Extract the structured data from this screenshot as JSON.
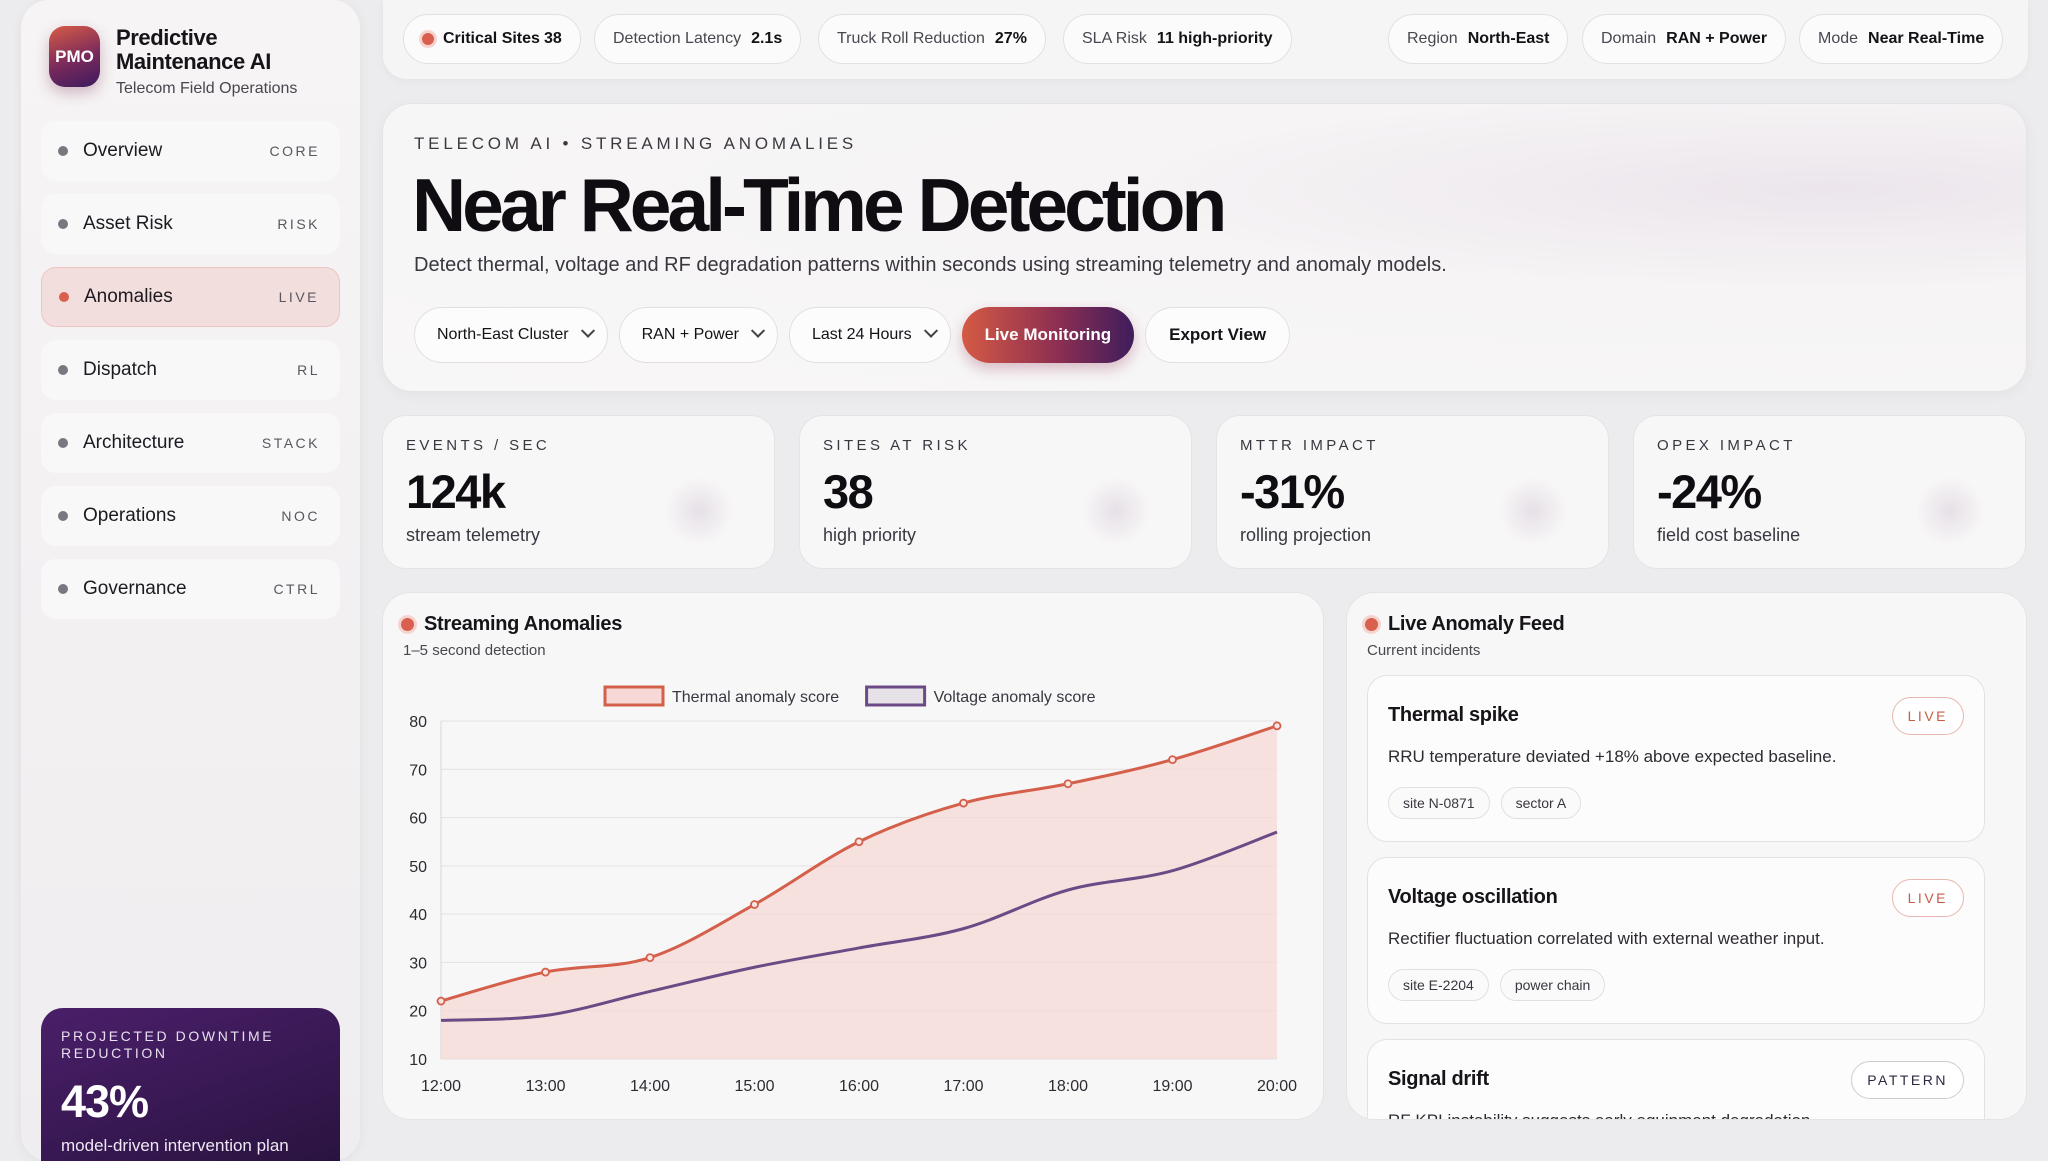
{
  "brand": {
    "logo": "PMO",
    "title_line1": "Predictive",
    "title_line2": "Maintenance AI",
    "subtitle": "Telecom Field Operations"
  },
  "nav": [
    {
      "label": "Overview",
      "tag": "CORE"
    },
    {
      "label": "Asset Risk",
      "tag": "RISK"
    },
    {
      "label": "Anomalies",
      "tag": "LIVE",
      "active": true
    },
    {
      "label": "Dispatch",
      "tag": "RL"
    },
    {
      "label": "Architecture",
      "tag": "STACK"
    },
    {
      "label": "Operations",
      "tag": "NOC"
    },
    {
      "label": "Governance",
      "tag": "CTRL"
    }
  ],
  "promo": {
    "label": "PROJECTED DOWNTIME REDUCTION",
    "value": "43%",
    "sub": "model-driven intervention plan"
  },
  "topbar": {
    "critical": {
      "label": "Critical Sites",
      "value": "38"
    },
    "latency": {
      "label": "Detection Latency",
      "value": "2.1s"
    },
    "truck": {
      "label": "Truck Roll Reduction",
      "value": "27%"
    },
    "sla": {
      "label": "SLA Risk",
      "value": "11 high-priority"
    },
    "region": {
      "label": "Region",
      "value": "North-East"
    },
    "domain": {
      "label": "Domain",
      "value": "RAN + Power"
    },
    "mode": {
      "label": "Mode",
      "value": "Near Real-Time"
    }
  },
  "hero": {
    "eyebrow": "TELECOM AI • STREAMING ANOMALIES",
    "title": "Near Real-Time Detection",
    "description": "Detect thermal, voltage and RF degradation patterns within seconds using streaming telemetry and anomaly models.",
    "filters": [
      "North-East Cluster",
      "RAN + Power",
      "Last 24 Hours"
    ],
    "primary": "Live Monitoring",
    "secondary": "Export View"
  },
  "kpis": [
    {
      "label": "EVENTS / SEC",
      "value": "124k",
      "sub": "stream telemetry"
    },
    {
      "label": "SITES AT RISK",
      "value": "38",
      "sub": "high priority"
    },
    {
      "label": "MTTR IMPACT",
      "value": "-31%",
      "sub": "rolling projection"
    },
    {
      "label": "OPEX IMPACT",
      "value": "-24%",
      "sub": "field cost baseline"
    }
  ],
  "chart_panel": {
    "title": "Streaming Anomalies",
    "subtitle": "1–5 second detection"
  },
  "chart_data": {
    "type": "line",
    "x": [
      "12:00",
      "13:00",
      "14:00",
      "15:00",
      "16:00",
      "17:00",
      "18:00",
      "19:00",
      "20:00"
    ],
    "series": [
      {
        "name": "Thermal anomaly score",
        "values": [
          22,
          28,
          31,
          42,
          55,
          63,
          67,
          72,
          79
        ],
        "color": "#d4604c",
        "fill": true
      },
      {
        "name": "Voltage anomaly score",
        "values": [
          18,
          19,
          24,
          29,
          33,
          37,
          45,
          49,
          57
        ],
        "color": "#6b4a86",
        "fill": false
      }
    ],
    "yticks": [
      10,
      20,
      30,
      40,
      50,
      60,
      70,
      80
    ],
    "ylim": [
      10,
      80
    ],
    "grid": true,
    "legend": "top"
  },
  "feed_panel": {
    "title": "Live Anomaly Feed",
    "subtitle": "Current incidents"
  },
  "feed": [
    {
      "title": "Thermal spike",
      "badge": "LIVE",
      "desc": "RRU temperature deviated +18% above expected baseline.",
      "tags": [
        "site N-0871",
        "sector A"
      ]
    },
    {
      "title": "Voltage oscillation",
      "badge": "LIVE",
      "desc": "Rectifier fluctuation correlated with external weather input.",
      "tags": [
        "site E-2204",
        "power chain"
      ]
    },
    {
      "title": "Signal drift",
      "badge": "PATTERN",
      "desc": "RF KPI instability suggests early equipment degradation.",
      "tags": [
        "",
        ""
      ]
    }
  ]
}
